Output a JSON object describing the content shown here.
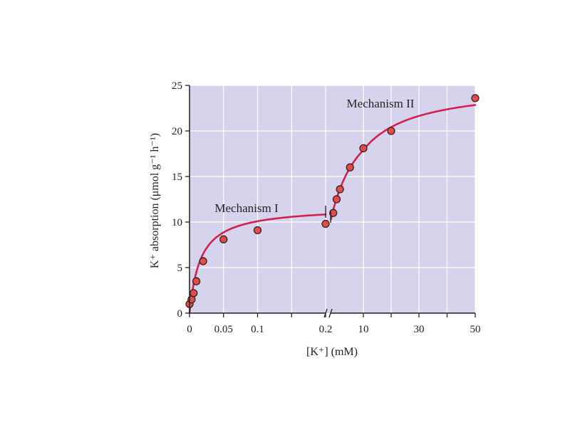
{
  "colors": {
    "plot_background": "#d6d4ec",
    "gridline": "#ffffff",
    "curve": "#d3204f",
    "point_fill": "#e04d4a",
    "point_stroke": "#3a2020",
    "axis": "#231f20"
  },
  "chart_data": {
    "type": "scatter",
    "title": "",
    "xlabel": "[K⁺] (mM)",
    "ylabel": "K⁺ absorption (μmol g⁻¹ h⁻¹)",
    "ylim": [
      0,
      25
    ],
    "y_ticks": [
      0,
      5,
      10,
      15,
      20,
      25
    ],
    "grid": true,
    "axis_break": "between 0.2 and the high-concentration segment on the x axis",
    "x_segments": [
      {
        "name": "low",
        "xlim": [
          0,
          0.2
        ],
        "ticks": [
          0,
          0.05,
          0.1,
          0.2
        ],
        "tick_labels": [
          "0",
          "0.05",
          "0.1",
          "0.2"
        ],
        "minor_ticks": [
          0.15
        ]
      },
      {
        "name": "high",
        "xlim": [
          0.2,
          50
        ],
        "ticks": [
          10,
          30,
          50
        ],
        "tick_labels": [
          "10",
          "30",
          "50"
        ],
        "minor_ticks": [
          20,
          40
        ]
      }
    ],
    "points": [
      {
        "x": 0.0,
        "y": 1.0,
        "segment": "low"
      },
      {
        "x": 0.003,
        "y": 1.5,
        "segment": "low"
      },
      {
        "x": 0.006,
        "y": 2.2,
        "segment": "low"
      },
      {
        "x": 0.01,
        "y": 3.5,
        "segment": "low"
      },
      {
        "x": 0.02,
        "y": 5.7,
        "segment": "low"
      },
      {
        "x": 0.05,
        "y": 8.1,
        "segment": "low"
      },
      {
        "x": 0.1,
        "y": 9.1,
        "segment": "low"
      },
      {
        "x": 0.2,
        "y": 9.8,
        "segment": "low"
      },
      {
        "x": 1.0,
        "y": 11.0,
        "segment": "high"
      },
      {
        "x": 2.0,
        "y": 12.5,
        "segment": "high"
      },
      {
        "x": 3.0,
        "y": 13.6,
        "segment": "high"
      },
      {
        "x": 6.0,
        "y": 16.0,
        "segment": "high"
      },
      {
        "x": 10.0,
        "y": 18.1,
        "segment": "high"
      },
      {
        "x": 20.0,
        "y": 20.0,
        "segment": "high"
      },
      {
        "x": 50.0,
        "y": 23.6,
        "segment": "high"
      }
    ],
    "curves": [
      {
        "segment": "low",
        "vmax": 11.7,
        "km": 0.016,
        "x_range": [
          0.0,
          0.2
        ]
      },
      {
        "segment": "high",
        "base": 9.8,
        "vmax": 15.4,
        "km": 9.0,
        "x_range": [
          0.3,
          50
        ]
      }
    ],
    "annotations": [
      {
        "text": "Mechanism I"
      },
      {
        "text": "Mechanism II"
      }
    ]
  }
}
